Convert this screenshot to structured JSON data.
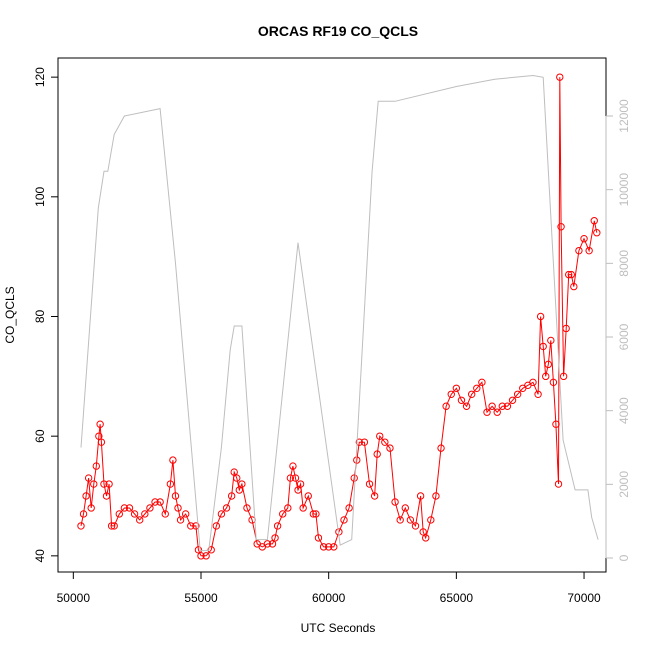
{
  "chart_data": {
    "type": "line",
    "title": "ORCAS RF19 CO_QCLS",
    "xlabel": "UTC Seconds",
    "ylabel": "CO_QCLS",
    "xlim": [
      49400,
      70860
    ],
    "xticks": [
      50000,
      55000,
      60000,
      65000,
      70000
    ],
    "ylim": [
      37.3,
      123.2
    ],
    "yticks": [
      40,
      60,
      80,
      100,
      120
    ],
    "y2lim": [
      -380,
      13575
    ],
    "y2ticks": [
      0,
      2000,
      4000,
      6000,
      8000,
      10000,
      12000
    ],
    "series": [
      {
        "color": "#ff0000",
        "marker": "circle",
        "x": [
          50300,
          50400,
          50500,
          50600,
          50700,
          50800,
          50900,
          51000,
          51050,
          51100,
          51200,
          51300,
          51400,
          51500,
          51600,
          51800,
          52000,
          52200,
          52400,
          52600,
          52800,
          53000,
          53200,
          53400,
          53600,
          53800,
          53900,
          54000,
          54100,
          54200,
          54400,
          54600,
          54800,
          54900,
          55000,
          55200,
          55400,
          55600,
          55800,
          56000,
          56200,
          56300,
          56400,
          56500,
          56600,
          56800,
          57000,
          57200,
          57400,
          57600,
          57800,
          57900,
          58000,
          58200,
          58400,
          58500,
          58600,
          58700,
          58800,
          58900,
          59000,
          59200,
          59400,
          59500,
          59600,
          59800,
          60000,
          60200,
          60400,
          60600,
          60800,
          61000,
          61100,
          61200,
          61400,
          61600,
          61800,
          61900,
          62000,
          62200,
          62400,
          62600,
          62800,
          63000,
          63200,
          63400,
          63600,
          63700,
          63800,
          64000,
          64200,
          64400,
          64600,
          64800,
          65000,
          65200,
          65400,
          65600,
          65800,
          66000,
          66200,
          66400,
          66600,
          66800,
          67000,
          67200,
          67400,
          67600,
          67800,
          68000,
          68200,
          68300,
          68400,
          68500,
          68600,
          68700,
          68800,
          68900,
          69000,
          69050,
          69100,
          69200,
          69300,
          69400,
          69500,
          69600,
          69800,
          70000,
          70200,
          70400,
          70500
        ],
        "values": [
          45,
          47,
          50,
          53,
          48,
          52,
          55,
          60,
          62,
          59,
          52,
          50,
          52,
          45,
          45,
          47,
          48,
          48,
          47,
          46,
          47,
          48,
          49,
          49,
          47,
          52,
          56,
          50,
          48,
          46,
          47,
          45,
          45,
          41,
          40,
          40,
          41,
          45,
          47,
          48,
          50,
          54,
          53,
          51,
          52,
          48,
          46,
          42,
          41.5,
          42,
          42,
          43,
          45,
          47,
          48,
          53,
          55,
          53,
          51,
          52,
          48,
          50,
          47,
          47,
          43,
          41.5,
          41.5,
          41.5,
          44,
          46,
          48,
          53,
          56,
          59,
          59,
          52,
          50,
          57,
          60,
          59,
          58,
          49,
          46,
          48,
          46,
          45,
          50,
          44,
          43,
          46,
          50,
          58,
          65,
          67,
          68,
          66,
          65,
          67,
          68,
          69,
          64,
          65,
          64,
          65,
          65,
          66,
          67,
          68,
          68.5,
          69,
          67,
          80,
          75,
          70,
          72,
          76,
          69,
          62,
          52,
          120,
          95,
          70,
          78,
          87,
          87,
          85,
          91,
          93,
          91,
          96,
          94
        ]
      },
      {
        "color": "#bebebe",
        "axis": "y2",
        "x": [
          50300,
          50980,
          51200,
          51350,
          51600,
          52000,
          53400,
          54000,
          54970,
          55300,
          55800,
          56145,
          56300,
          56600,
          57160,
          57600,
          58800,
          60450,
          60900,
          61700,
          61940,
          62600,
          65000,
          66500,
          68000,
          68400,
          69180,
          69650,
          70150,
          70300,
          70550
        ],
        "values": [
          3000,
          9500,
          10500,
          10500,
          11500,
          12000,
          12200,
          8000,
          200,
          200,
          3000,
          5650,
          6300,
          6300,
          500,
          500,
          8560,
          350,
          500,
          10500,
          12400,
          12400,
          12800,
          13000,
          13100,
          13050,
          3200,
          1850,
          1850,
          1100,
          500
        ]
      }
    ]
  }
}
